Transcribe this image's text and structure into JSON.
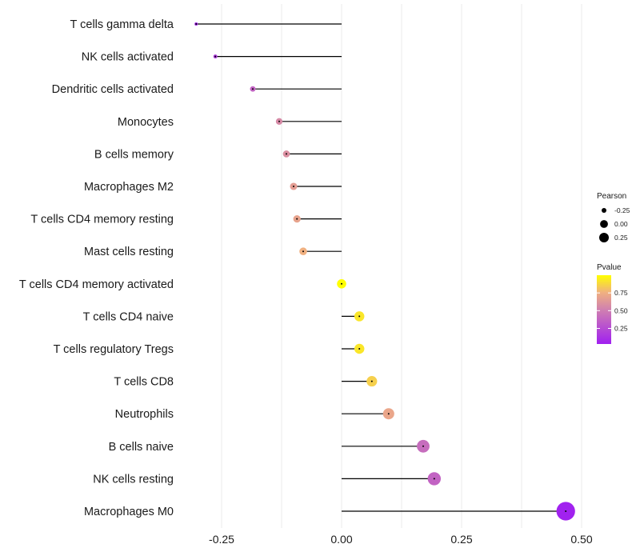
{
  "chart_data": {
    "type": "lollipop",
    "title": "",
    "xlabel": "",
    "ylabel": "",
    "xlim": [
      -0.32,
      0.505
    ],
    "xticks": [
      -0.25,
      0.0,
      0.25,
      0.5
    ],
    "xtick_labels": [
      "-0.25",
      "0.00",
      "0.25",
      "0.50"
    ],
    "grid": true,
    "legend_position": "right",
    "categories": [
      "T cells gamma delta",
      "NK cells activated",
      "Dendritic cells activated",
      "Monocytes",
      "B cells memory",
      "Macrophages M2",
      "T cells CD4 memory resting",
      "Mast cells resting",
      "T cells CD4 memory activated",
      "T cells CD4 naive",
      "T cells regulatory  Tregs ",
      "T cells CD8",
      "Neutrophils",
      "B cells naive",
      "NK cells resting",
      "Macrophages M0"
    ],
    "pearson": [
      -0.303,
      -0.263,
      -0.185,
      -0.13,
      -0.115,
      -0.1,
      -0.093,
      -0.08,
      0.0,
      0.037,
      0.037,
      0.063,
      0.098,
      0.17,
      0.193,
      0.467
    ],
    "pvalue": [
      0.02,
      0.15,
      0.35,
      0.55,
      0.58,
      0.65,
      0.68,
      0.75,
      1.0,
      0.92,
      0.92,
      0.85,
      0.7,
      0.4,
      0.35,
      0.01
    ],
    "size_legend": {
      "title": "Pearson",
      "labels": [
        "-0.25",
        "0.00",
        "0.25"
      ],
      "values": [
        -0.25,
        0.0,
        0.25
      ]
    },
    "color_legend": {
      "title": "Pvalue",
      "labels": [
        "0.75",
        "0.50",
        "0.25"
      ],
      "values": [
        0.75,
        0.5,
        0.25
      ],
      "low_color": "#A020F0",
      "high_color": "#FFFF00"
    }
  }
}
